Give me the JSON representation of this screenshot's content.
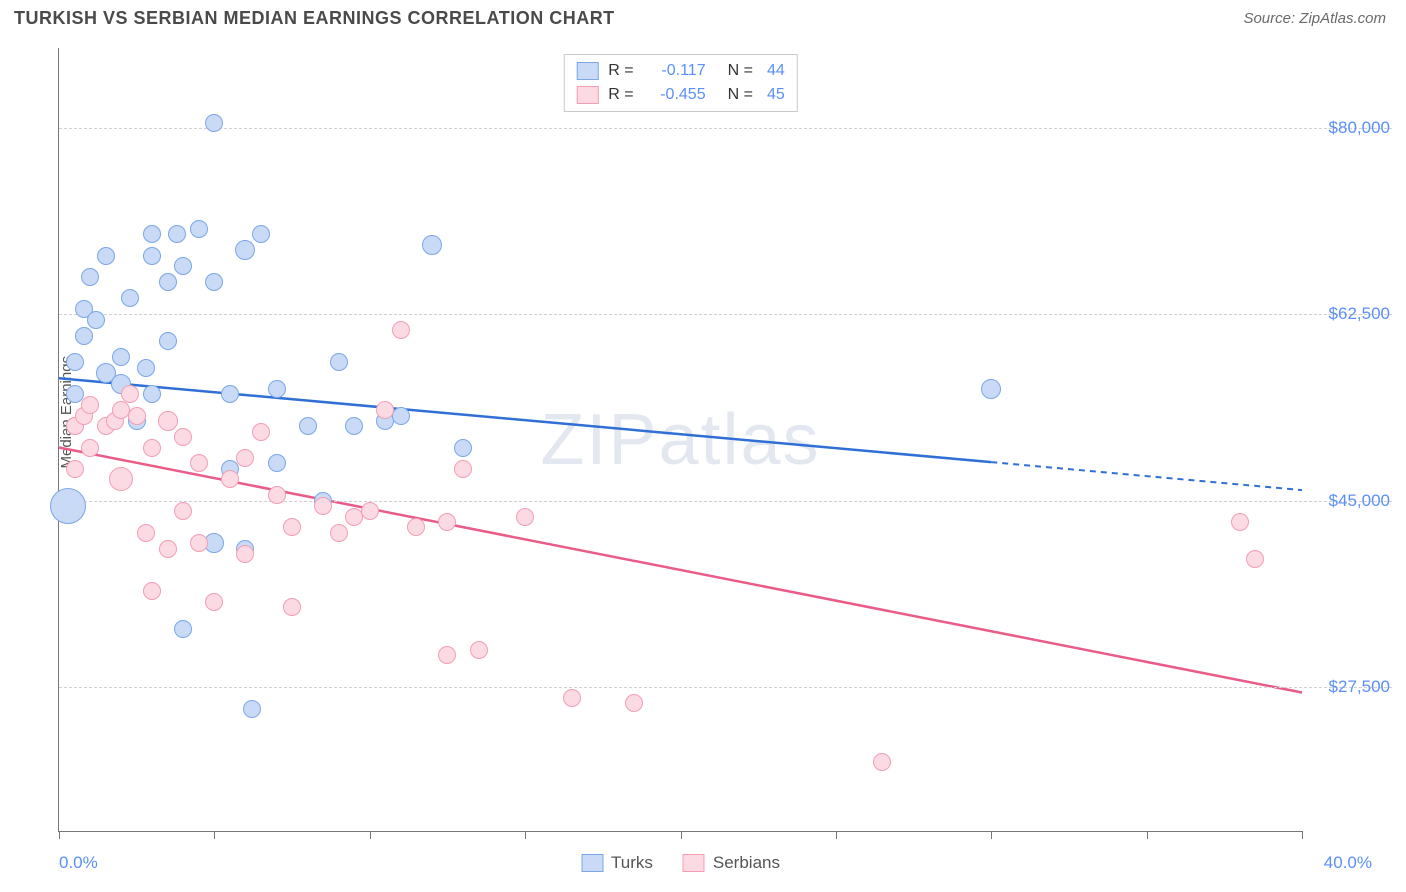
{
  "header": {
    "title": "TURKISH VS SERBIAN MEDIAN EARNINGS CORRELATION CHART",
    "source": "Source: ZipAtlas.com"
  },
  "chart": {
    "type": "scatter",
    "ylabel": "Median Earnings",
    "watermark": "ZIPatlas",
    "x_domain": [
      0,
      40
    ],
    "y_domain": [
      14000,
      87500
    ],
    "x_min_label": "0.0%",
    "x_max_label": "40.0%",
    "x_ticks": [
      0,
      5,
      10,
      15,
      20,
      25,
      30,
      35,
      40
    ],
    "y_gridlines": [
      27500,
      45000,
      62500,
      80000
    ],
    "y_tick_labels": [
      "$27,500",
      "$45,000",
      "$62,500",
      "$80,000"
    ],
    "series": [
      {
        "name": "Turks",
        "fill": "#c8daf6",
        "stroke": "#7ba6e8",
        "line_color": "#2f6fd6",
        "r_value": "-0.117",
        "n_value": "44",
        "trend": {
          "x1": 0,
          "y1": 56500,
          "x2": 40,
          "y2": 46000,
          "solid_until": 30
        },
        "points": [
          {
            "x": 0.3,
            "y": 44500,
            "r": 18
          },
          {
            "x": 0.5,
            "y": 52000,
            "r": 9
          },
          {
            "x": 0.5,
            "y": 55000,
            "r": 9
          },
          {
            "x": 0.5,
            "y": 58000,
            "r": 9
          },
          {
            "x": 0.8,
            "y": 60500,
            "r": 9
          },
          {
            "x": 0.8,
            "y": 63000,
            "r": 9
          },
          {
            "x": 1.0,
            "y": 66000,
            "r": 9
          },
          {
            "x": 1.2,
            "y": 62000,
            "r": 9
          },
          {
            "x": 1.5,
            "y": 57000,
            "r": 10
          },
          {
            "x": 1.5,
            "y": 68000,
            "r": 9
          },
          {
            "x": 2.0,
            "y": 56000,
            "r": 10
          },
          {
            "x": 2.0,
            "y": 58500,
            "r": 9
          },
          {
            "x": 2.3,
            "y": 64000,
            "r": 9
          },
          {
            "x": 2.5,
            "y": 52500,
            "r": 9
          },
          {
            "x": 2.8,
            "y": 57500,
            "r": 9
          },
          {
            "x": 3.0,
            "y": 55000,
            "r": 9
          },
          {
            "x": 3.0,
            "y": 68000,
            "r": 9
          },
          {
            "x": 3.0,
            "y": 70000,
            "r": 9
          },
          {
            "x": 3.5,
            "y": 65500,
            "r": 9
          },
          {
            "x": 3.5,
            "y": 60000,
            "r": 9
          },
          {
            "x": 3.8,
            "y": 70000,
            "r": 9
          },
          {
            "x": 4.0,
            "y": 67000,
            "r": 9
          },
          {
            "x": 4.0,
            "y": 33000,
            "r": 9
          },
          {
            "x": 4.5,
            "y": 70500,
            "r": 9
          },
          {
            "x": 5.0,
            "y": 65500,
            "r": 9
          },
          {
            "x": 5.0,
            "y": 80500,
            "r": 9
          },
          {
            "x": 5.0,
            "y": 41000,
            "r": 10
          },
          {
            "x": 5.5,
            "y": 48000,
            "r": 9
          },
          {
            "x": 5.5,
            "y": 55000,
            "r": 9
          },
          {
            "x": 6.0,
            "y": 68500,
            "r": 10
          },
          {
            "x": 6.0,
            "y": 40500,
            "r": 9
          },
          {
            "x": 6.2,
            "y": 25500,
            "r": 9
          },
          {
            "x": 6.5,
            "y": 70000,
            "r": 9
          },
          {
            "x": 7.0,
            "y": 55500,
            "r": 9
          },
          {
            "x": 7.0,
            "y": 48500,
            "r": 9
          },
          {
            "x": 8.0,
            "y": 52000,
            "r": 9
          },
          {
            "x": 8.5,
            "y": 45000,
            "r": 9
          },
          {
            "x": 9.0,
            "y": 58000,
            "r": 9
          },
          {
            "x": 9.5,
            "y": 52000,
            "r": 9
          },
          {
            "x": 10.5,
            "y": 52500,
            "r": 9
          },
          {
            "x": 11.0,
            "y": 53000,
            "r": 9
          },
          {
            "x": 12.0,
            "y": 69000,
            "r": 10
          },
          {
            "x": 13.0,
            "y": 50000,
            "r": 9
          },
          {
            "x": 30.0,
            "y": 55500,
            "r": 10
          }
        ]
      },
      {
        "name": "Serbians",
        "fill": "#fbdae3",
        "stroke": "#f39eb4",
        "line_color": "#ea5b87",
        "r_value": "-0.455",
        "n_value": "45",
        "trend": {
          "x1": 0,
          "y1": 50000,
          "x2": 40,
          "y2": 27000,
          "solid_until": 40
        },
        "points": [
          {
            "x": 0.5,
            "y": 52000,
            "r": 9
          },
          {
            "x": 0.5,
            "y": 48000,
            "r": 9
          },
          {
            "x": 0.8,
            "y": 53000,
            "r": 9
          },
          {
            "x": 1.0,
            "y": 50000,
            "r": 9
          },
          {
            "x": 1.0,
            "y": 54000,
            "r": 9
          },
          {
            "x": 1.5,
            "y": 52000,
            "r": 9
          },
          {
            "x": 1.8,
            "y": 52500,
            "r": 9
          },
          {
            "x": 2.0,
            "y": 53500,
            "r": 9
          },
          {
            "x": 2.0,
            "y": 47000,
            "r": 12
          },
          {
            "x": 2.3,
            "y": 55000,
            "r": 9
          },
          {
            "x": 2.5,
            "y": 53000,
            "r": 9
          },
          {
            "x": 2.8,
            "y": 42000,
            "r": 9
          },
          {
            "x": 3.0,
            "y": 50000,
            "r": 9
          },
          {
            "x": 3.0,
            "y": 36500,
            "r": 9
          },
          {
            "x": 3.5,
            "y": 52500,
            "r": 10
          },
          {
            "x": 3.5,
            "y": 40500,
            "r": 9
          },
          {
            "x": 4.0,
            "y": 51000,
            "r": 9
          },
          {
            "x": 4.0,
            "y": 44000,
            "r": 9
          },
          {
            "x": 4.5,
            "y": 48500,
            "r": 9
          },
          {
            "x": 4.5,
            "y": 41000,
            "r": 9
          },
          {
            "x": 5.0,
            "y": 35500,
            "r": 9
          },
          {
            "x": 5.5,
            "y": 47000,
            "r": 9
          },
          {
            "x": 6.0,
            "y": 49000,
            "r": 9
          },
          {
            "x": 6.0,
            "y": 40000,
            "r": 9
          },
          {
            "x": 6.5,
            "y": 51500,
            "r": 9
          },
          {
            "x": 7.0,
            "y": 45500,
            "r": 9
          },
          {
            "x": 7.5,
            "y": 42500,
            "r": 9
          },
          {
            "x": 7.5,
            "y": 35000,
            "r": 9
          },
          {
            "x": 8.5,
            "y": 44500,
            "r": 9
          },
          {
            "x": 9.0,
            "y": 42000,
            "r": 9
          },
          {
            "x": 9.5,
            "y": 43500,
            "r": 9
          },
          {
            "x": 10.0,
            "y": 44000,
            "r": 9
          },
          {
            "x": 10.5,
            "y": 53500,
            "r": 9
          },
          {
            "x": 11.0,
            "y": 61000,
            "r": 9
          },
          {
            "x": 11.5,
            "y": 42500,
            "r": 9
          },
          {
            "x": 12.5,
            "y": 43000,
            "r": 9
          },
          {
            "x": 12.5,
            "y": 30500,
            "r": 9
          },
          {
            "x": 13.0,
            "y": 48000,
            "r": 9
          },
          {
            "x": 13.5,
            "y": 31000,
            "r": 9
          },
          {
            "x": 15.0,
            "y": 43500,
            "r": 9
          },
          {
            "x": 16.5,
            "y": 26500,
            "r": 9
          },
          {
            "x": 18.5,
            "y": 26000,
            "r": 9
          },
          {
            "x": 26.5,
            "y": 20500,
            "r": 9
          },
          {
            "x": 38.0,
            "y": 43000,
            "r": 9
          },
          {
            "x": 38.5,
            "y": 39500,
            "r": 9
          }
        ]
      }
    ]
  },
  "legend_top_labels": {
    "r": "R =",
    "n": "N ="
  }
}
